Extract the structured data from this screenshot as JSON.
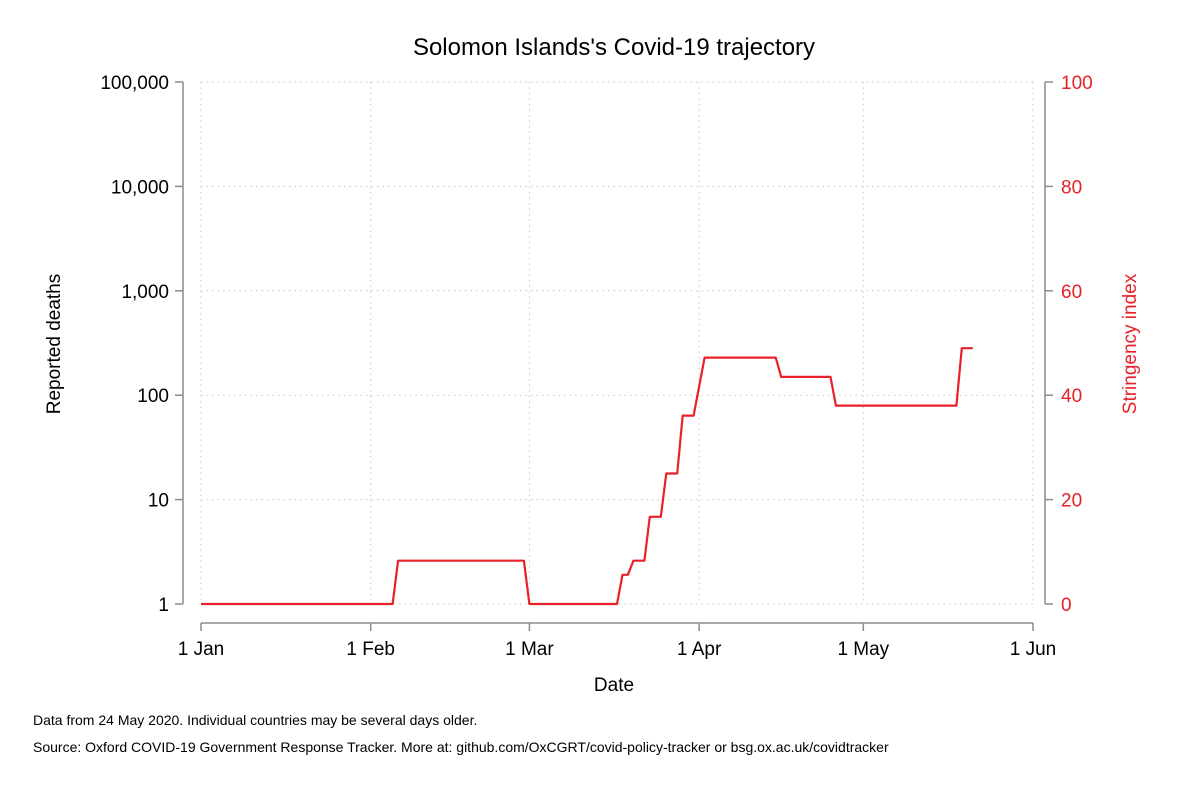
{
  "chart_data": {
    "type": "line",
    "title": "Solomon Islands's Covid-19 trajectory",
    "xlabel": "Date",
    "ylabel_left": "Reported deaths",
    "ylabel_right": "Stringency index",
    "x_ticks": [
      {
        "date": "2020-01-01",
        "label": "1 Jan"
      },
      {
        "date": "2020-02-01",
        "label": "1 Feb"
      },
      {
        "date": "2020-03-01",
        "label": "1 Mar"
      },
      {
        "date": "2020-04-01",
        "label": "1 Apr"
      },
      {
        "date": "2020-05-01",
        "label": "1 May"
      },
      {
        "date": "2020-06-01",
        "label": "1 Jun"
      }
    ],
    "xlim": [
      "2020-01-01",
      "2020-06-01"
    ],
    "y_left": {
      "scale": "log",
      "ylim": [
        1,
        100000
      ],
      "ticks": [
        {
          "value": 1,
          "label": "1"
        },
        {
          "value": 10,
          "label": "10"
        },
        {
          "value": 100,
          "label": "100"
        },
        {
          "value": 1000,
          "label": "1,000"
        },
        {
          "value": 10000,
          "label": "10,000"
        },
        {
          "value": 100000,
          "label": "100,000"
        }
      ]
    },
    "y_right": {
      "scale": "linear",
      "ylim": [
        0,
        100
      ],
      "ticks": [
        {
          "value": 0,
          "label": "0"
        },
        {
          "value": 20,
          "label": "20"
        },
        {
          "value": 40,
          "label": "40"
        },
        {
          "value": 60,
          "label": "60"
        },
        {
          "value": 80,
          "label": "80"
        },
        {
          "value": 100,
          "label": "100"
        }
      ]
    },
    "grid": true,
    "series": [
      {
        "axis": "right",
        "color": "#e8202a",
        "points": [
          {
            "date": "2020-01-01",
            "value": 0
          },
          {
            "date": "2020-02-05",
            "value": 0
          },
          {
            "date": "2020-02-06",
            "value": 8.3
          },
          {
            "date": "2020-02-29",
            "value": 8.3
          },
          {
            "date": "2020-03-01",
            "value": 0
          },
          {
            "date": "2020-03-17",
            "value": 0
          },
          {
            "date": "2020-03-18",
            "value": 5.6
          },
          {
            "date": "2020-03-19",
            "value": 5.6
          },
          {
            "date": "2020-03-20",
            "value": 8.3
          },
          {
            "date": "2020-03-22",
            "value": 8.3
          },
          {
            "date": "2020-03-23",
            "value": 16.7
          },
          {
            "date": "2020-03-25",
            "value": 16.7
          },
          {
            "date": "2020-03-26",
            "value": 25
          },
          {
            "date": "2020-03-28",
            "value": 25
          },
          {
            "date": "2020-03-29",
            "value": 36.1
          },
          {
            "date": "2020-03-31",
            "value": 36.1
          },
          {
            "date": "2020-04-02",
            "value": 47.2
          },
          {
            "date": "2020-04-15",
            "value": 47.2
          },
          {
            "date": "2020-04-16",
            "value": 43.5
          },
          {
            "date": "2020-04-25",
            "value": 43.5
          },
          {
            "date": "2020-04-26",
            "value": 38
          },
          {
            "date": "2020-05-18",
            "value": 38
          },
          {
            "date": "2020-05-19",
            "value": 49
          },
          {
            "date": "2020-05-21",
            "value": 49
          }
        ]
      }
    ]
  },
  "notes": {
    "line1": "Data from 24 May 2020. Individual countries may be several days older.",
    "line2": "Source: Oxford COVID-19 Government Response Tracker. More at: github.com/OxCGRT/covid-policy-tracker or bsg.ox.ac.uk/covidtracker"
  }
}
